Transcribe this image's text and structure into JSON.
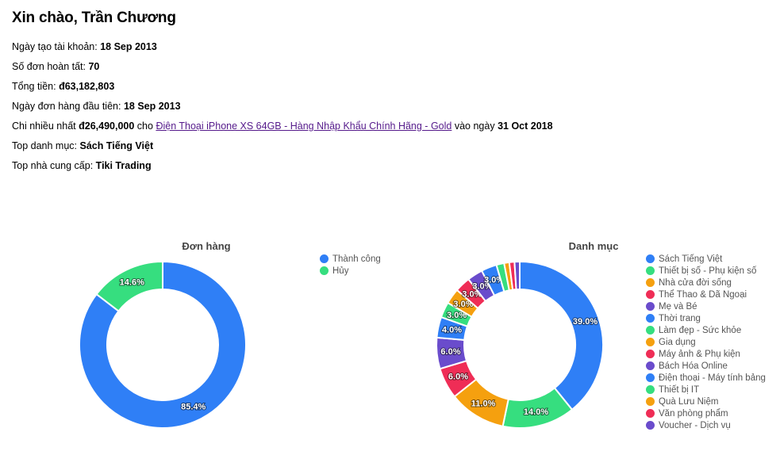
{
  "header": {
    "greeting": "Xin chào, Trần Chương"
  },
  "stats": {
    "account_created_label": "Ngày tạo tài khoản:",
    "account_created_value": "18 Sep 2013",
    "orders_done_label": "Số đơn hoàn tất:",
    "orders_done_value": "70",
    "total_label": "Tổng tiền:",
    "total_value": "đ63,182,803",
    "first_order_label": "Ngày đơn hàng đầu tiên:",
    "first_order_value": "18 Sep 2013",
    "max_spend_label": "Chi nhiều nhất",
    "max_spend_value": "đ26,490,000",
    "max_spend_for": "cho",
    "max_spend_product": "Điện Thoại iPhone XS 64GB - Hàng Nhập Khẩu Chính Hãng - Gold",
    "max_spend_on": "vào ngày",
    "max_spend_date": "31 Oct 2018",
    "top_category_label": "Top danh mục:",
    "top_category_value": "Sách Tiếng Việt",
    "top_supplier_label": "Top nhà cung cấp:",
    "top_supplier_value": "Tiki Trading"
  },
  "chart_data": [
    {
      "type": "pie",
      "title": "Đơn hàng",
      "categories": [
        "Thành công",
        "Hủy"
      ],
      "values": [
        85.4,
        14.6
      ],
      "colors": [
        "#2f7ff6",
        "#36de7f"
      ],
      "legend": "right"
    },
    {
      "type": "pie",
      "title": "Danh mục",
      "categories": [
        "Sách Tiếng Việt",
        "Thiết bị số - Phụ kiện số",
        "Nhà cửa đời sống",
        "Thể Thao & Dã Ngoại",
        "Mẹ và Bé",
        "Thời trang",
        "Làm đẹp - Sức khỏe",
        "Gia dụng",
        "Máy ảnh & Phụ kiện",
        "Bách Hóa Online",
        "Điện thoại - Máy tính bảng",
        "Thiết bị IT",
        "Quà Lưu Niệm",
        "Văn phòng phẩm",
        "Voucher - Dịch vụ"
      ],
      "values": [
        39.0,
        14.0,
        11.0,
        6.0,
        6.0,
        4.0,
        3.0,
        3.0,
        3.0,
        3.0,
        3.0,
        1.5,
        1.0,
        1.0,
        1.0
      ],
      "labels": [
        "39.0%",
        "14.0%",
        "11.0%",
        "6.0%",
        "6.0%",
        "4.0%",
        "3.0%",
        "3.0%",
        "3.0%",
        "3.0%",
        "3.0%",
        "",
        "",
        "",
        ""
      ],
      "colors": [
        "#2f7ff6",
        "#36de7f",
        "#f5a00f",
        "#ef2d56",
        "#6a4ccc",
        "#2f7ff6",
        "#36de7f",
        "#f5a00f",
        "#ef2d56",
        "#6a4ccc",
        "#2f7ff6",
        "#36de7f",
        "#f5a00f",
        "#ef2d56",
        "#6a4ccc"
      ],
      "legend": "right"
    }
  ]
}
